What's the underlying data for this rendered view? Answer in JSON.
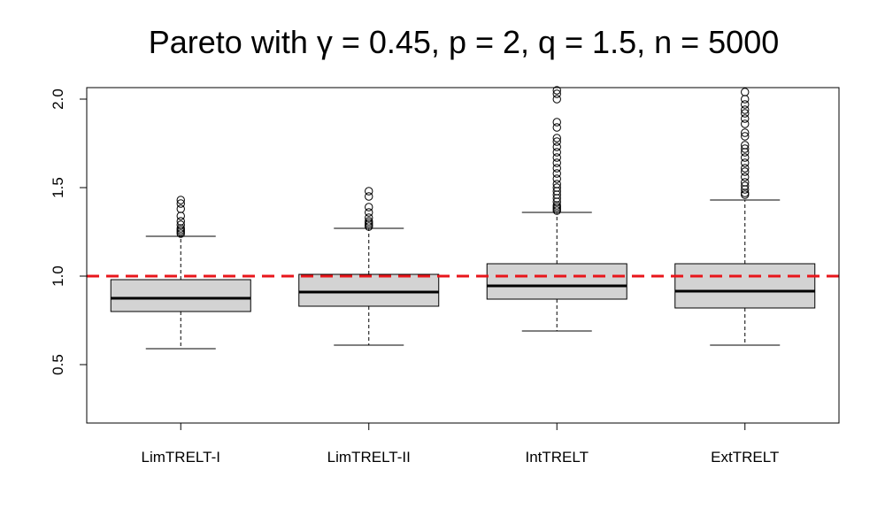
{
  "chart_data": {
    "type": "boxplot",
    "title": "Pareto with γ = 0.45, p = 2, q = 1.5, n = 5000",
    "xlabel": "",
    "ylabel": "",
    "ylim": [
      0.17,
      2.05
    ],
    "yticks": [
      0.5,
      1.0,
      1.5,
      2.0
    ],
    "ytick_labels": [
      "0.5",
      "1.0",
      "1.5",
      "2.0"
    ],
    "reference_line": {
      "y": 1.0,
      "color": "#e8161b",
      "style": "dashed"
    },
    "box_color": "#d3d3d3",
    "categories": [
      "LimTRELT-I",
      "LimTRELT-II",
      "IntTRELT",
      "ExtTRELT"
    ],
    "boxes": [
      {
        "name": "LimTRELT-I",
        "whisker_low": 0.59,
        "q1": 0.8,
        "median": 0.875,
        "q3": 0.98,
        "whisker_high": 1.225,
        "outliers": [
          1.24,
          1.25,
          1.26,
          1.27,
          1.29,
          1.31,
          1.34,
          1.38,
          1.41,
          1.43
        ]
      },
      {
        "name": "LimTRELT-II",
        "whisker_low": 0.61,
        "q1": 0.83,
        "median": 0.91,
        "q3": 1.01,
        "whisker_high": 1.27,
        "outliers": [
          1.28,
          1.29,
          1.3,
          1.31,
          1.33,
          1.36,
          1.39,
          1.45,
          1.48
        ]
      },
      {
        "name": "IntTRELT",
        "whisker_low": 0.69,
        "q1": 0.87,
        "median": 0.945,
        "q3": 1.07,
        "whisker_high": 1.36,
        "outliers": [
          1.37,
          1.38,
          1.39,
          1.4,
          1.42,
          1.44,
          1.46,
          1.48,
          1.5,
          1.52,
          1.55,
          1.58,
          1.61,
          1.64,
          1.67,
          1.7,
          1.73,
          1.76,
          1.78,
          1.84,
          1.87,
          2.0,
          2.03,
          2.05
        ]
      },
      {
        "name": "ExtTRELT",
        "whisker_low": 0.61,
        "q1": 0.82,
        "median": 0.915,
        "q3": 1.07,
        "whisker_high": 1.43,
        "outliers": [
          1.46,
          1.47,
          1.49,
          1.51,
          1.53,
          1.56,
          1.59,
          1.61,
          1.64,
          1.67,
          1.7,
          1.72,
          1.74,
          1.79,
          1.81,
          1.86,
          1.89,
          1.92,
          1.94,
          1.97,
          2.0,
          2.04
        ]
      }
    ]
  }
}
